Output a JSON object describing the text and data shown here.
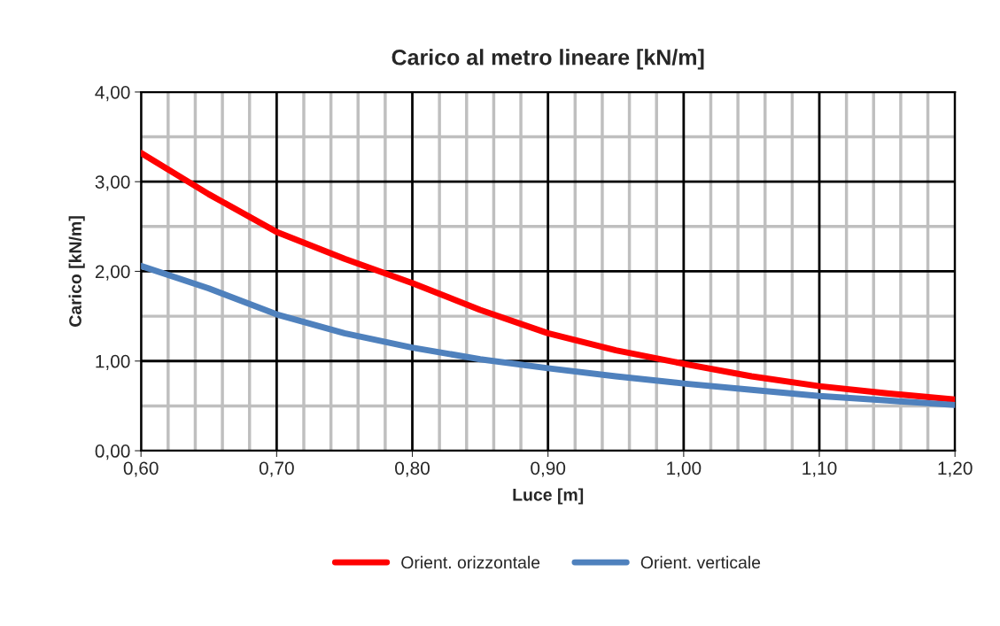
{
  "chart_data": {
    "type": "line",
    "title": "Carico al metro lineare [kN/m]",
    "xlabel": "Luce [m]",
    "ylabel": "Carico [kN/m]",
    "x": [
      0.6,
      0.65,
      0.7,
      0.75,
      0.8,
      0.85,
      0.9,
      0.95,
      1.0,
      1.05,
      1.1,
      1.15,
      1.2
    ],
    "series": [
      {
        "name": "Orient. orizzontale",
        "color": "#ff0000",
        "values": [
          3.32,
          2.86,
          2.44,
          2.14,
          1.87,
          1.57,
          1.31,
          1.12,
          0.97,
          0.83,
          0.72,
          0.64,
          0.57
        ]
      },
      {
        "name": "Orient. verticale",
        "color": "#4f81bd",
        "values": [
          2.06,
          1.81,
          1.52,
          1.31,
          1.15,
          1.02,
          0.92,
          0.83,
          0.75,
          0.68,
          0.61,
          0.56,
          0.51
        ]
      }
    ],
    "xlim": [
      0.6,
      1.2
    ],
    "ylim": [
      0,
      4
    ],
    "xticks": [
      {
        "value": 0.6,
        "label": "0,60"
      },
      {
        "value": 0.7,
        "label": "0,70"
      },
      {
        "value": 0.8,
        "label": "0,80"
      },
      {
        "value": 0.9,
        "label": "0,90"
      },
      {
        "value": 1.0,
        "label": "1,00"
      },
      {
        "value": 1.1,
        "label": "1,10"
      },
      {
        "value": 1.2,
        "label": "1,20"
      }
    ],
    "yticks": [
      {
        "value": 0,
        "label": "0,00"
      },
      {
        "value": 1,
        "label": "1,00"
      },
      {
        "value": 2,
        "label": "2,00"
      },
      {
        "value": 3,
        "label": "3,00"
      },
      {
        "value": 4,
        "label": "4,00"
      }
    ],
    "grid": true,
    "legend": "bottom",
    "marker": "none",
    "line_style": "solid"
  }
}
